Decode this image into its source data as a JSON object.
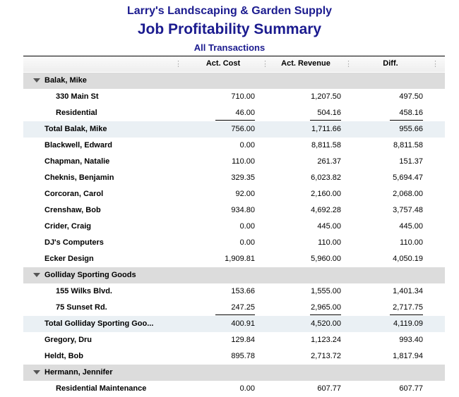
{
  "report": {
    "company": "Larry's Landscaping & Garden Supply",
    "title": "Job Profitability Summary",
    "subtitle": "All Transactions"
  },
  "columns": [
    "Act. Cost",
    "Act. Revenue",
    "Diff."
  ],
  "rows": [
    {
      "type": "group",
      "name": "Balak, Mike"
    },
    {
      "type": "sub",
      "name": "330 Main St",
      "cost": "710.00",
      "revenue": "1,207.50",
      "diff": "497.50"
    },
    {
      "type": "sub",
      "name": "Residential",
      "cost": "46.00",
      "revenue": "504.16",
      "diff": "458.16",
      "underline": true
    },
    {
      "type": "total",
      "name": "Total Balak, Mike",
      "cost": "756.00",
      "revenue": "1,711.66",
      "diff": "955.66"
    },
    {
      "type": "item",
      "name": "Blackwell, Edward",
      "cost": "0.00",
      "revenue": "8,811.58",
      "diff": "8,811.58"
    },
    {
      "type": "item",
      "name": "Chapman, Natalie",
      "cost": "110.00",
      "revenue": "261.37",
      "diff": "151.37"
    },
    {
      "type": "item",
      "name": "Cheknis, Benjamin",
      "cost": "329.35",
      "revenue": "6,023.82",
      "diff": "5,694.47"
    },
    {
      "type": "item",
      "name": "Corcoran, Carol",
      "cost": "92.00",
      "revenue": "2,160.00",
      "diff": "2,068.00"
    },
    {
      "type": "item",
      "name": "Crenshaw, Bob",
      "cost": "934.80",
      "revenue": "4,692.28",
      "diff": "3,757.48"
    },
    {
      "type": "item",
      "name": "Crider, Craig",
      "cost": "0.00",
      "revenue": "445.00",
      "diff": "445.00"
    },
    {
      "type": "item",
      "name": "DJ's Computers",
      "cost": "0.00",
      "revenue": "110.00",
      "diff": "110.00"
    },
    {
      "type": "item",
      "name": "Ecker Design",
      "cost": "1,909.81",
      "revenue": "5,960.00",
      "diff": "4,050.19"
    },
    {
      "type": "group",
      "name": "Golliday Sporting Goods"
    },
    {
      "type": "sub",
      "name": "155 Wilks Blvd.",
      "cost": "153.66",
      "revenue": "1,555.00",
      "diff": "1,401.34"
    },
    {
      "type": "sub",
      "name": "75 Sunset Rd.",
      "cost": "247.25",
      "revenue": "2,965.00",
      "diff": "2,717.75",
      "underline": true
    },
    {
      "type": "total",
      "name": "Total Golliday Sporting Goo...",
      "cost": "400.91",
      "revenue": "4,520.00",
      "diff": "4,119.09"
    },
    {
      "type": "item",
      "name": "Gregory, Dru",
      "cost": "129.84",
      "revenue": "1,123.24",
      "diff": "993.40"
    },
    {
      "type": "item",
      "name": "Heldt, Bob",
      "cost": "895.78",
      "revenue": "2,713.72",
      "diff": "1,817.94"
    },
    {
      "type": "group",
      "name": "Hermann, Jennifer"
    },
    {
      "type": "sub",
      "name": "Residential Maintenance",
      "cost": "0.00",
      "revenue": "607.77",
      "diff": "607.77"
    }
  ]
}
